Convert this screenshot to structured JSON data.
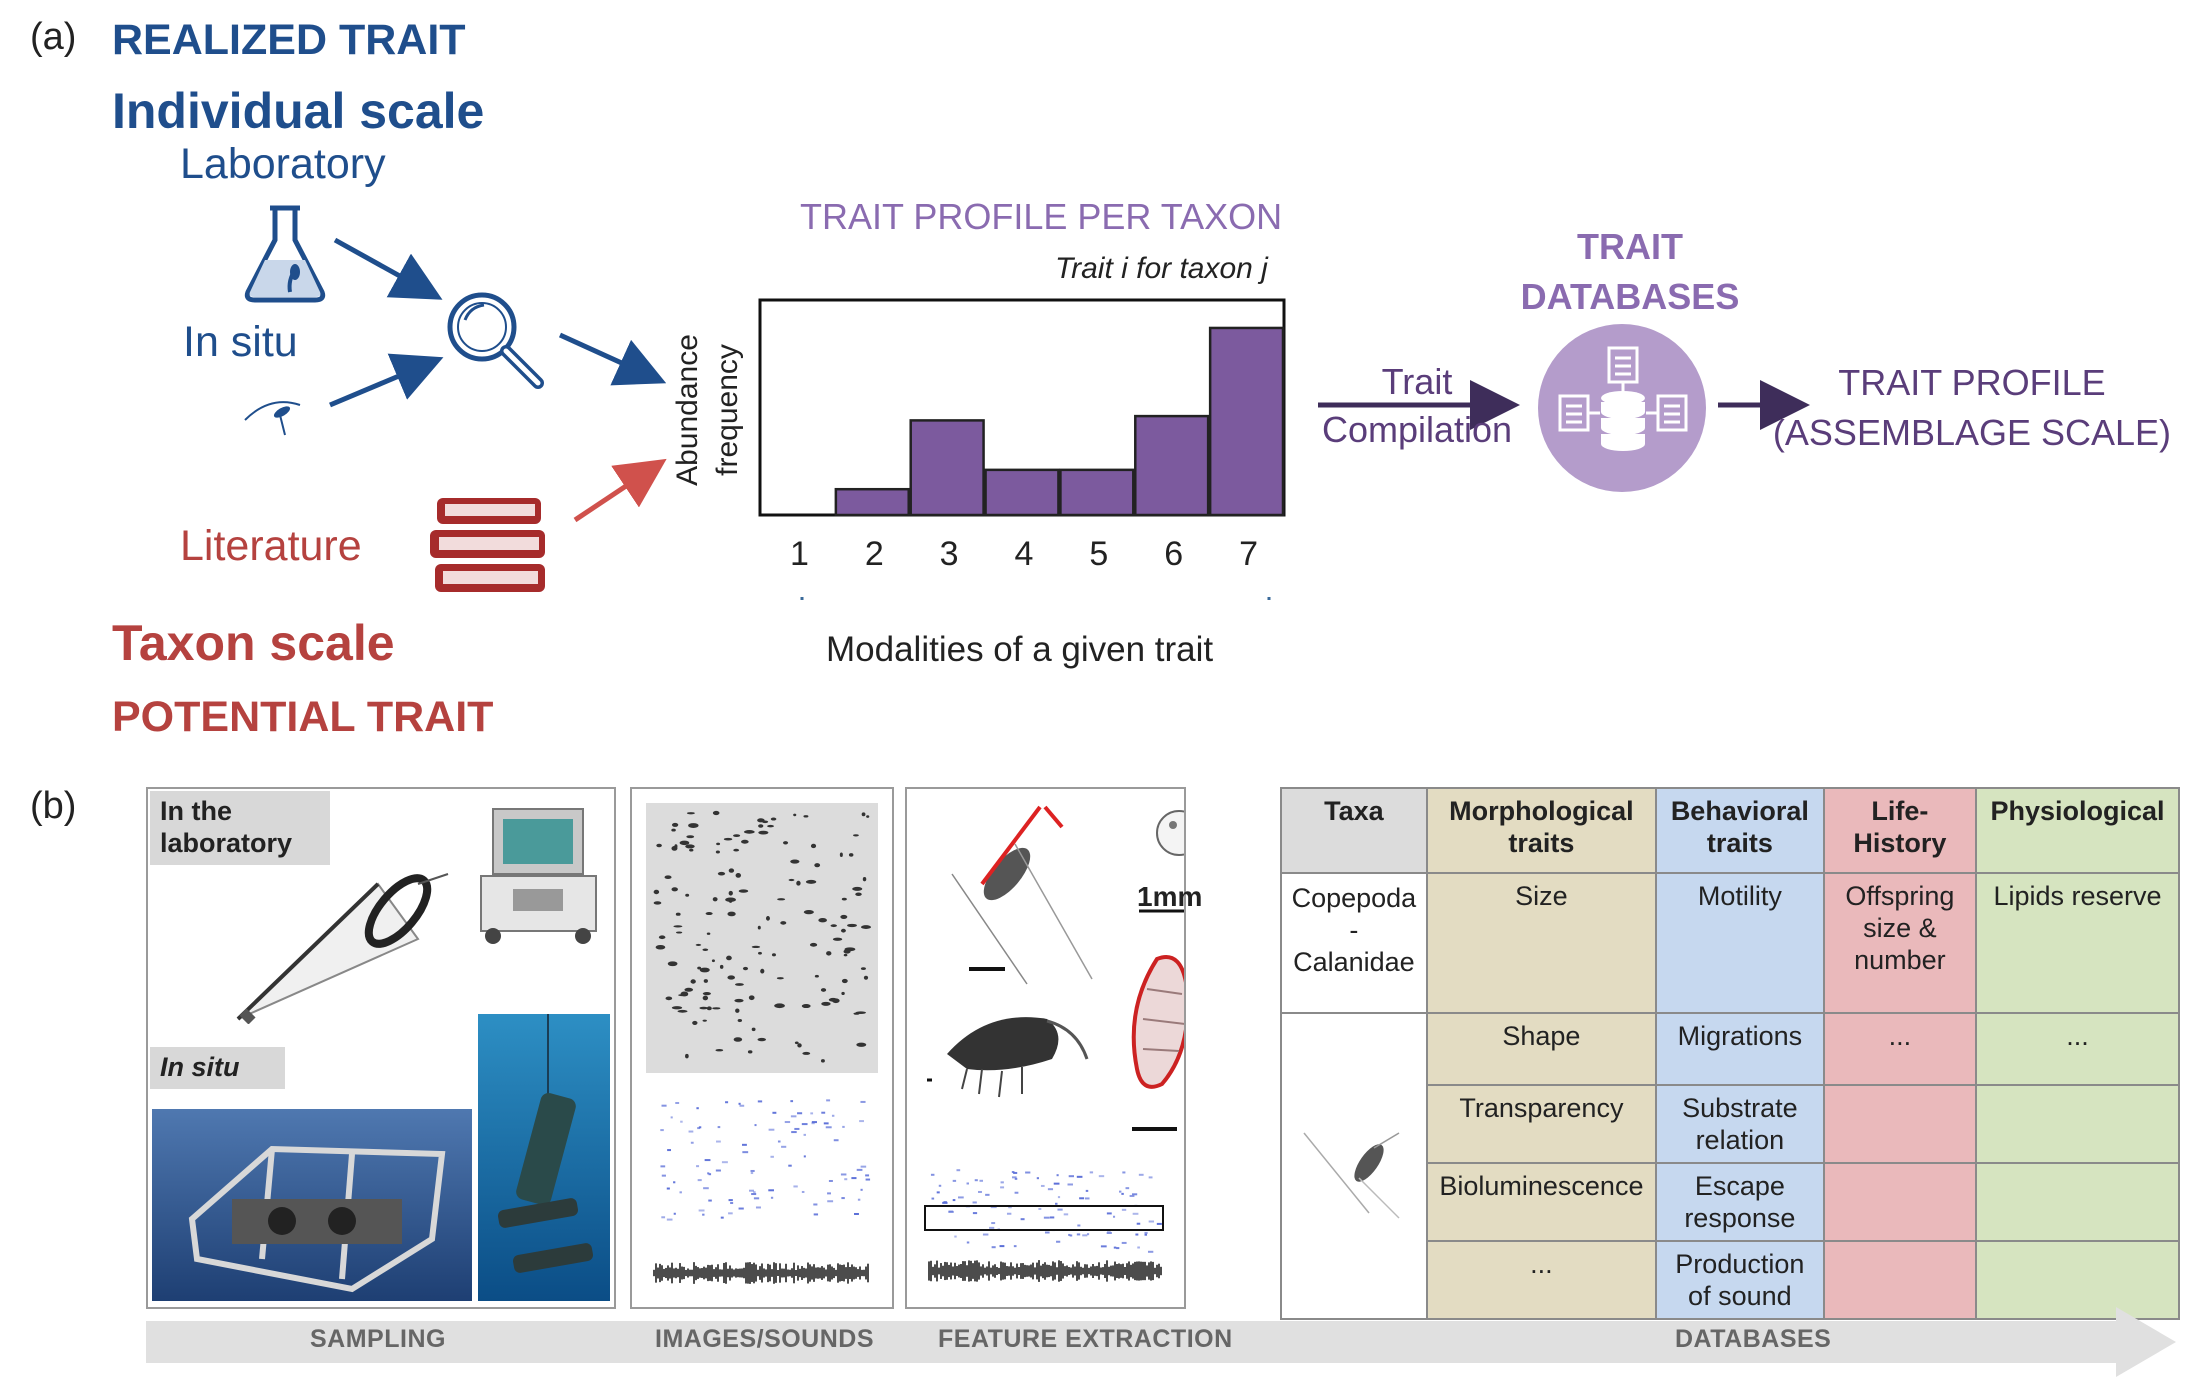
{
  "panel_a": {
    "letter": "(a)",
    "realized_trait": "REALIZED TRAIT",
    "individual_scale": "Individual scale",
    "laboratory": "Laboratory",
    "in_situ": "In situ",
    "literature": "Literature",
    "taxon_scale": "Taxon scale",
    "potential_trait": "POTENTIAL TRAIT",
    "trait_profile_title": "TRAIT PROFILE PER TAXON",
    "trait_subtitle": "Trait i for taxon j",
    "y_label_line1": "Abundance",
    "y_label_line2": "frequency",
    "x_label": "Modalities of a given trait",
    "compilation_line1": "Trait",
    "compilation_line2": "Compilation",
    "databases_line1": "TRAIT",
    "databases_line2": "DATABASES",
    "profile_line1": "TRAIT PROFILE",
    "profile_line2": "(ASSEMBLAGE SCALE)"
  },
  "chart_data": {
    "type": "bar",
    "categories": [
      "1",
      "2",
      "3",
      "4",
      "5",
      "6",
      "7"
    ],
    "values": [
      0,
      12,
      44,
      21,
      21,
      46,
      87
    ],
    "ylim": [
      0,
      100
    ],
    "xlabel": "Modalities of a given trait",
    "ylabel": "Abundance frequency",
    "title": "Trait i for taxon j"
  },
  "panel_b": {
    "letter": "(b)",
    "in_the_laboratory": "In the laboratory",
    "in_situ": "In situ",
    "scale_1mm": "1mm",
    "stages": [
      "SAMPLING",
      "IMAGES/SOUNDS",
      "FEATURE EXTRACTION",
      "DATABASES"
    ],
    "table": {
      "headers": [
        "Taxa",
        "Morphological traits",
        "Behavioral traits",
        "Life-History",
        "Physiological"
      ],
      "taxon_name": "Copepoda - Calanidae",
      "row1": [
        "Size",
        "Motility",
        "Offspring size & number",
        "Lipids reserve"
      ],
      "row2": [
        "Shape",
        "Migrations",
        "...",
        "..."
      ],
      "row3": [
        "Transparency",
        "Substrate relation",
        "",
        ""
      ],
      "row4": [
        "Bioluminescence",
        "Escape response",
        "",
        ""
      ],
      "row5": [
        "...",
        "Production of sound",
        "",
        ""
      ]
    }
  },
  "colors": {
    "blue": "#1f4e8c",
    "red": "#b5423f",
    "purple": "#8a6bb0",
    "bar": "#7c5a9e",
    "morph": "#e3dcc2",
    "behav": "#c6d8ef",
    "life": "#eab9bb",
    "phys": "#d6e4c0"
  }
}
